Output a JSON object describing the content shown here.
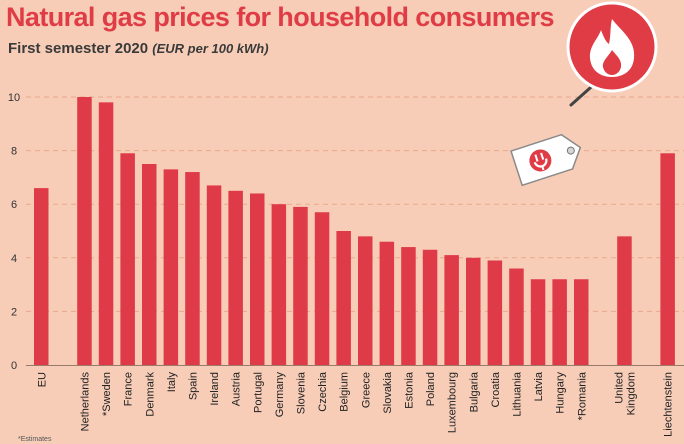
{
  "header": {
    "title": "Natural gas prices for household consumers",
    "subtitle": "First semester 2020",
    "unit": "(EUR per 100 kWh)"
  },
  "footnote": "*Estimates",
  "colors": {
    "background": "#f7cdb8",
    "bar": "#df3a47",
    "accent": "#e03c46",
    "grid": "#e9a88c"
  },
  "icons": {
    "badge": "flame-icon",
    "tag": "gas-plug-icon"
  },
  "chart_data": {
    "type": "bar",
    "title": "Natural gas prices for household consumers",
    "subtitle": "First semester 2020 (EUR per 100 kWh)",
    "xlabel": "",
    "ylabel": "EUR per 100 kWh",
    "ylim": [
      0,
      10
    ],
    "yticks": [
      0,
      2,
      4,
      6,
      8,
      10
    ],
    "grid": true,
    "categories": [
      "EU",
      "Netherlands",
      "*Sweden",
      "France",
      "Denmark",
      "Italy",
      "Spain",
      "Ireland",
      "Austria",
      "Portugal",
      "Germany",
      "Slovenia",
      "Czechia",
      "Belgium",
      "Greece",
      "Slovakia",
      "Estonia",
      "Poland",
      "Luxembourg",
      "Bulgaria",
      "Croatia",
      "Lithuania",
      "Latvia",
      "Hungary",
      "*Romania",
      "United Kingdom",
      "Liechtenstein"
    ],
    "values": [
      6.6,
      10.0,
      9.8,
      7.9,
      7.5,
      7.3,
      7.2,
      6.7,
      6.5,
      6.4,
      6.0,
      5.9,
      5.7,
      5.0,
      4.8,
      4.6,
      4.4,
      4.3,
      4.1,
      4.0,
      3.9,
      3.6,
      3.2,
      3.2,
      3.2,
      4.8,
      7.9
    ],
    "group_breaks_after": [
      "EU",
      "*Romania",
      "United Kingdom"
    ]
  }
}
